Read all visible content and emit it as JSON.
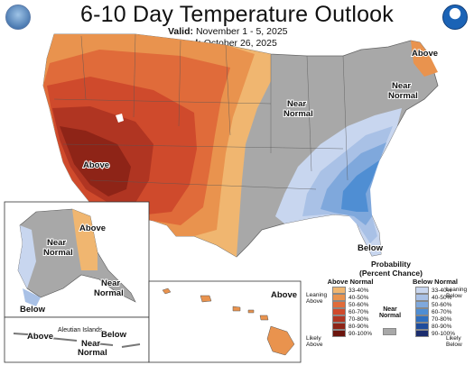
{
  "header": {
    "title": "6-10 Day Temperature Outlook",
    "valid_label": "Valid:",
    "valid_value": "November 1 - 5, 2025",
    "issued_label": "Issued:",
    "issued_value": "October 26, 2025"
  },
  "logos": {
    "left": "noaa-seal-icon",
    "right": "nws-logo-icon"
  },
  "map_labels": {
    "conus_above_west": "Above",
    "conus_near_normal": [
      "Near",
      "Normal"
    ],
    "northeast_above": "Above",
    "northeast_near_normal": [
      "Near",
      "Normal"
    ],
    "southeast_below": "Below",
    "alaska_near_normal": [
      "Near",
      "Normal"
    ],
    "alaska_above": "Above",
    "alaska_south_near_normal": [
      "Near",
      "Normal"
    ],
    "alaska_below": "Below",
    "aleutian_title": "Aleutian Islands",
    "aleutian_above": "Above",
    "aleutian_near_normal": [
      "Near",
      "Normal"
    ],
    "aleutian_below": "Below",
    "hawaii_above": "Above"
  },
  "legend": {
    "title_line1": "Probability",
    "title_line2": "(Percent Chance)",
    "above_header": "Above Normal",
    "normal_header": [
      "Near",
      "Normal"
    ],
    "below_header": "Below Normal",
    "leaning_above": [
      "Leaning",
      "Above"
    ],
    "likely_above": [
      "Likely",
      "Above"
    ],
    "leaning_below": [
      "Leaning",
      "Below"
    ],
    "likely_below": [
      "Likely",
      "Below"
    ],
    "above_ranges": [
      "33-40%",
      "40-50%",
      "50-60%",
      "60-70%",
      "70-80%",
      "80-90%",
      "90-100%"
    ],
    "below_ranges": [
      "33-40%",
      "40-50%",
      "50-60%",
      "60-70%",
      "70-80%",
      "80-90%",
      "90-100%"
    ],
    "above_colors": [
      "#f0b670",
      "#e9934e",
      "#e06b3a",
      "#cf4a2c",
      "#b03522",
      "#8e2417",
      "#6b150d"
    ],
    "below_colors": [
      "#c8d6ef",
      "#a9c1e6",
      "#7fa8dc",
      "#4f8ed3",
      "#2f6fc0",
      "#1f4c9c",
      "#1b2d6e"
    ],
    "normal_color": "#a8a8a8"
  }
}
